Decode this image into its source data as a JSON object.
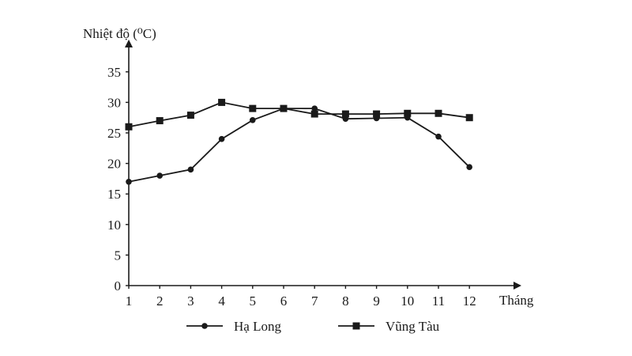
{
  "chart_data": {
    "type": "line",
    "ylabel": "Nhiệt độ (⁰C)",
    "xlabel": "Tháng",
    "categories": [
      "1",
      "2",
      "3",
      "4",
      "5",
      "6",
      "7",
      "8",
      "9",
      "10",
      "11",
      "12"
    ],
    "x_tick_labels": [
      "1",
      "2",
      "3",
      "4",
      "5",
      "6",
      "7",
      "8",
      "9",
      "10",
      "11",
      "12"
    ],
    "y_ticks": [
      0,
      5,
      10,
      15,
      20,
      25,
      30,
      35
    ],
    "ylim": [
      0,
      37
    ],
    "grid": false,
    "legend_position": "bottom",
    "colors": {
      "line": "#1a1a1a",
      "axis": "#1a1a1a"
    },
    "series": [
      {
        "name": "Hạ Long",
        "marker": "circle",
        "values": [
          17.0,
          18.0,
          19.0,
          24.0,
          27.1,
          29.0,
          29.0,
          27.3,
          27.4,
          27.5,
          24.4,
          19.4
        ]
      },
      {
        "name": "Vũng Tàu",
        "marker": "square",
        "values": [
          26.0,
          27.0,
          27.9,
          30.0,
          29.0,
          29.0,
          28.1,
          28.1,
          28.1,
          28.2,
          28.2,
          27.5
        ]
      }
    ]
  }
}
